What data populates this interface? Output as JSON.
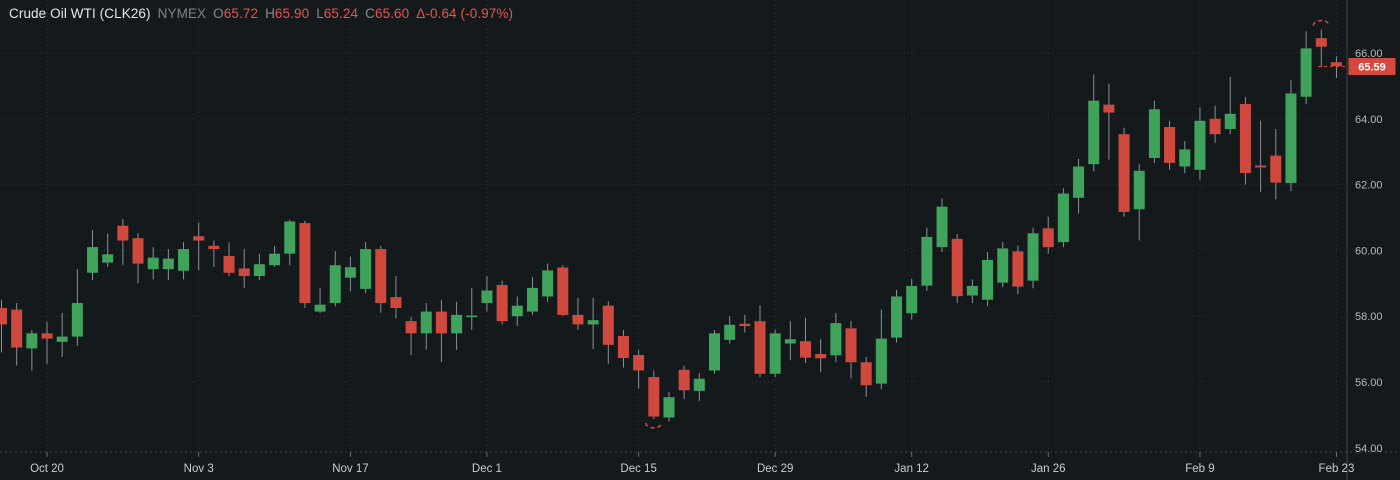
{
  "header": {
    "title": "Crude Oil WTI (CLK26)",
    "exchange": "NYMEX",
    "ohlc_items": [
      {
        "label": "O",
        "value": "65.72"
      },
      {
        "label": "H",
        "value": "65.90"
      },
      {
        "label": "L",
        "value": "65.24"
      },
      {
        "label": "C",
        "value": "65.60"
      }
    ],
    "change": "Δ-0.64 (-0.97%)"
  },
  "colors": {
    "background": "#141a1c",
    "up_candle": "#3fa35c",
    "down_candle": "#d0493f",
    "wick": "#8b9099",
    "grid": "#2c3238",
    "axis_border": "#3e444c",
    "y_label_text": "#b5b9c1",
    "x_label_text": "#c9ccd1",
    "title_text": "#e6e8ea",
    "red_text": "#e2564e",
    "price_label_bg": "#d6473d",
    "price_label_text": "#ffffff",
    "annotation": "#e0473d"
  },
  "chart_data": {
    "type": "candlestick",
    "title": "Crude Oil WTI (CLK26) NYMEX daily candles",
    "y_axis": {
      "side": "right",
      "ticks": [
        {
          "label": "66.00",
          "price": 66.0
        },
        {
          "label": "64.00",
          "price": 64.0
        },
        {
          "label": "62.00",
          "price": 62.0
        },
        {
          "label": "60.00",
          "price": 60.0
        },
        {
          "label": "58.00",
          "price": 58.0
        },
        {
          "label": "56.00",
          "price": 56.0
        },
        {
          "label": "54.00",
          "price": 54.0
        }
      ],
      "grid_prices": [
        66.0,
        64.0,
        62.0,
        60.0,
        58.0,
        56.0
      ]
    },
    "x_axis": {
      "labels": [
        {
          "index": 3,
          "text": "Oct 20"
        },
        {
          "index": 13,
          "text": "Nov 3"
        },
        {
          "index": 23,
          "text": "Nov 17"
        },
        {
          "index": 32,
          "text": "Dec 1"
        },
        {
          "index": 42,
          "text": "Dec 15"
        },
        {
          "index": 51,
          "text": "Dec 29"
        },
        {
          "index": 60,
          "text": "Jan 12"
        },
        {
          "index": 69,
          "text": "Jan 26"
        },
        {
          "index": 79,
          "text": "Feb 9"
        },
        {
          "index": 88,
          "text": "Feb 23"
        }
      ]
    },
    "last_price": {
      "value": 65.59,
      "label": "65.59"
    },
    "candles_ohlc": [
      [
        58.25,
        58.5,
        56.9,
        57.75
      ],
      [
        58.2,
        58.4,
        56.5,
        57.05
      ],
      [
        57.02,
        57.58,
        56.35,
        57.48
      ],
      [
        57.48,
        57.83,
        56.55,
        57.32
      ],
      [
        57.22,
        58.1,
        56.76,
        57.38
      ],
      [
        57.38,
        59.43,
        57.1,
        58.4
      ],
      [
        59.32,
        60.62,
        59.1,
        60.1
      ],
      [
        59.63,
        60.51,
        59.5,
        59.88
      ],
      [
        60.75,
        60.95,
        59.55,
        60.3
      ],
      [
        60.37,
        60.52,
        59.0,
        59.6
      ],
      [
        59.43,
        60.1,
        59.12,
        59.78
      ],
      [
        59.43,
        60.04,
        59.1,
        59.75
      ],
      [
        59.38,
        60.25,
        59.12,
        60.04
      ],
      [
        60.43,
        60.85,
        59.4,
        60.3
      ],
      [
        60.14,
        60.3,
        59.5,
        60.04
      ],
      [
        59.83,
        60.25,
        59.22,
        59.32
      ],
      [
        59.45,
        60.04,
        58.86,
        59.22
      ],
      [
        59.22,
        59.9,
        59.1,
        59.58
      ],
      [
        59.55,
        60.14,
        59.5,
        59.9
      ],
      [
        59.9,
        60.93,
        59.55,
        60.88
      ],
      [
        60.83,
        60.9,
        58.25,
        58.4
      ],
      [
        58.14,
        58.86,
        58.1,
        58.35
      ],
      [
        58.4,
        59.98,
        58.3,
        59.55
      ],
      [
        59.17,
        59.8,
        58.76,
        59.49
      ],
      [
        58.83,
        60.25,
        58.7,
        60.04
      ],
      [
        60.04,
        60.14,
        58.1,
        58.4
      ],
      [
        58.58,
        59.22,
        57.93,
        58.25
      ],
      [
        57.85,
        57.98,
        56.82,
        57.48
      ],
      [
        57.48,
        58.4,
        56.98,
        58.14
      ],
      [
        58.14,
        58.5,
        56.6,
        57.48
      ],
      [
        57.48,
        58.44,
        56.98,
        58.04
      ],
      [
        57.98,
        58.86,
        57.58,
        58.02
      ],
      [
        58.4,
        59.22,
        58.14,
        58.78
      ],
      [
        58.95,
        59.08,
        57.75,
        57.85
      ],
      [
        58.0,
        58.6,
        57.7,
        58.32
      ],
      [
        58.14,
        59.19,
        58.04,
        58.86
      ],
      [
        58.6,
        59.6,
        58.44,
        59.39
      ],
      [
        59.48,
        59.55,
        58.0,
        58.04
      ],
      [
        58.04,
        58.56,
        57.58,
        57.75
      ],
      [
        57.75,
        58.56,
        57.0,
        57.88
      ],
      [
        58.32,
        58.45,
        56.55,
        57.13
      ],
      [
        57.4,
        57.58,
        56.44,
        56.73
      ],
      [
        56.82,
        56.98,
        55.8,
        56.35
      ],
      [
        56.15,
        56.35,
        54.88,
        54.95
      ],
      [
        54.92,
        55.7,
        54.8,
        55.54
      ],
      [
        56.37,
        56.5,
        55.48,
        55.75
      ],
      [
        55.73,
        56.27,
        55.42,
        56.1
      ],
      [
        56.35,
        57.58,
        56.25,
        57.48
      ],
      [
        57.28,
        58.0,
        57.17,
        57.74
      ],
      [
        57.77,
        58.04,
        57.5,
        57.7
      ],
      [
        57.85,
        58.32,
        56.15,
        56.25
      ],
      [
        56.25,
        57.59,
        56.15,
        57.48
      ],
      [
        57.17,
        57.85,
        56.66,
        57.3
      ],
      [
        57.24,
        57.95,
        56.58,
        56.74
      ],
      [
        56.85,
        57.3,
        56.3,
        56.72
      ],
      [
        56.81,
        58.1,
        56.6,
        57.79
      ],
      [
        57.63,
        57.85,
        56.11,
        56.6
      ],
      [
        56.6,
        56.76,
        55.55,
        55.9
      ],
      [
        55.95,
        58.2,
        55.78,
        57.32
      ],
      [
        57.35,
        58.8,
        57.2,
        58.6
      ],
      [
        58.09,
        59.14,
        57.89,
        58.92
      ],
      [
        58.93,
        60.69,
        58.77,
        60.41
      ],
      [
        60.1,
        61.58,
        59.95,
        61.33
      ],
      [
        60.35,
        60.5,
        58.4,
        58.61
      ],
      [
        58.63,
        59.12,
        58.4,
        58.92
      ],
      [
        58.5,
        59.95,
        58.3,
        59.71
      ],
      [
        59.02,
        60.25,
        58.88,
        60.06
      ],
      [
        59.97,
        60.15,
        58.68,
        58.9
      ],
      [
        59.08,
        60.69,
        58.85,
        60.52
      ],
      [
        60.67,
        61.02,
        59.9,
        60.1
      ],
      [
        60.25,
        61.89,
        60.1,
        61.73
      ],
      [
        61.6,
        62.78,
        61.12,
        62.55
      ],
      [
        62.62,
        65.35,
        62.4,
        64.55
      ],
      [
        64.43,
        65.07,
        62.76,
        64.19
      ],
      [
        63.53,
        63.73,
        61.02,
        61.17
      ],
      [
        61.25,
        62.62,
        60.3,
        62.42
      ],
      [
        62.81,
        64.55,
        62.66,
        64.29
      ],
      [
        63.75,
        63.94,
        62.45,
        62.66
      ],
      [
        62.55,
        63.32,
        62.35,
        63.07
      ],
      [
        62.45,
        64.35,
        62.15,
        63.94
      ],
      [
        64.0,
        64.4,
        63.27,
        63.53
      ],
      [
        63.69,
        65.27,
        63.53,
        64.15
      ],
      [
        64.45,
        64.66,
        62.0,
        62.35
      ],
      [
        62.58,
        63.94,
        61.78,
        62.52
      ],
      [
        62.88,
        63.69,
        61.55,
        62.06
      ],
      [
        62.05,
        65.17,
        61.8,
        64.77
      ],
      [
        64.67,
        66.66,
        64.45,
        66.14
      ],
      [
        66.45,
        66.71,
        65.58,
        66.19
      ],
      [
        65.72,
        65.9,
        65.24,
        65.6
      ]
    ],
    "annotations": [
      {
        "type": "arc-ellipse",
        "candle_index": 43,
        "position": "below",
        "open_side": "up"
      },
      {
        "type": "arc-ellipse",
        "candle_index": 87,
        "position": "above",
        "open_side": "down"
      }
    ]
  }
}
